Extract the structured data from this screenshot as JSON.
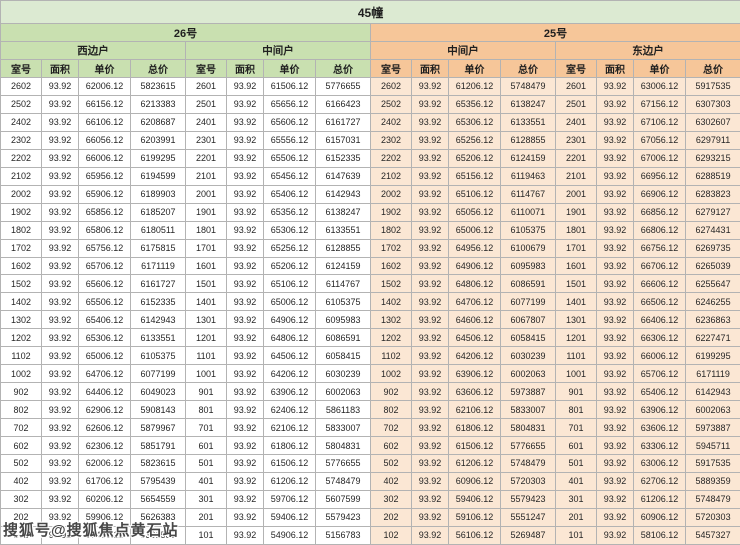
{
  "title": "45幢",
  "watermark": "搜狐号@搜狐焦点黄石站",
  "colors": {
    "title_bar": "#dcead2",
    "section_26_header": "#c9e0b0",
    "section_25_header": "#f6c699",
    "section_25_rows": "#fbe7d4",
    "border": "#b3b3b3"
  },
  "table": {
    "groups": [
      {
        "name": "26号",
        "units": [
          "西边户",
          "中间户"
        ]
      },
      {
        "name": "25号",
        "units": [
          "中间户",
          "东边户"
        ]
      }
    ],
    "column_headers": [
      "室号",
      "面积",
      "单价",
      "总价"
    ],
    "rows": [
      [
        "2602",
        "93.92",
        "62006.12",
        "5823615",
        "2601",
        "93.92",
        "61506.12",
        "5776655",
        "2602",
        "93.92",
        "61206.12",
        "5748479",
        "2601",
        "93.92",
        "63006.12",
        "5917535"
      ],
      [
        "2502",
        "93.92",
        "66156.12",
        "6213383",
        "2501",
        "93.92",
        "65656.12",
        "6166423",
        "2502",
        "93.92",
        "65356.12",
        "6138247",
        "2501",
        "93.92",
        "67156.12",
        "6307303"
      ],
      [
        "2402",
        "93.92",
        "66106.12",
        "6208687",
        "2401",
        "93.92",
        "65606.12",
        "6161727",
        "2402",
        "93.92",
        "65306.12",
        "6133551",
        "2401",
        "93.92",
        "67106.12",
        "6302607"
      ],
      [
        "2302",
        "93.92",
        "66056.12",
        "6203991",
        "2301",
        "93.92",
        "65556.12",
        "6157031",
        "2302",
        "93.92",
        "65256.12",
        "6128855",
        "2301",
        "93.92",
        "67056.12",
        "6297911"
      ],
      [
        "2202",
        "93.92",
        "66006.12",
        "6199295",
        "2201",
        "93.92",
        "65506.12",
        "6152335",
        "2202",
        "93.92",
        "65206.12",
        "6124159",
        "2201",
        "93.92",
        "67006.12",
        "6293215"
      ],
      [
        "2102",
        "93.92",
        "65956.12",
        "6194599",
        "2101",
        "93.92",
        "65456.12",
        "6147639",
        "2102",
        "93.92",
        "65156.12",
        "6119463",
        "2101",
        "93.92",
        "66956.12",
        "6288519"
      ],
      [
        "2002",
        "93.92",
        "65906.12",
        "6189903",
        "2001",
        "93.92",
        "65406.12",
        "6142943",
        "2002",
        "93.92",
        "65106.12",
        "6114767",
        "2001",
        "93.92",
        "66906.12",
        "6283823"
      ],
      [
        "1902",
        "93.92",
        "65856.12",
        "6185207",
        "1901",
        "93.92",
        "65356.12",
        "6138247",
        "1902",
        "93.92",
        "65056.12",
        "6110071",
        "1901",
        "93.92",
        "66856.12",
        "6279127"
      ],
      [
        "1802",
        "93.92",
        "65806.12",
        "6180511",
        "1801",
        "93.92",
        "65306.12",
        "6133551",
        "1802",
        "93.92",
        "65006.12",
        "6105375",
        "1801",
        "93.92",
        "66806.12",
        "6274431"
      ],
      [
        "1702",
        "93.92",
        "65756.12",
        "6175815",
        "1701",
        "93.92",
        "65256.12",
        "6128855",
        "1702",
        "93.92",
        "64956.12",
        "6100679",
        "1701",
        "93.92",
        "66756.12",
        "6269735"
      ],
      [
        "1602",
        "93.92",
        "65706.12",
        "6171119",
        "1601",
        "93.92",
        "65206.12",
        "6124159",
        "1602",
        "93.92",
        "64906.12",
        "6095983",
        "1601",
        "93.92",
        "66706.12",
        "6265039"
      ],
      [
        "1502",
        "93.92",
        "65606.12",
        "6161727",
        "1501",
        "93.92",
        "65106.12",
        "6114767",
        "1502",
        "93.92",
        "64806.12",
        "6086591",
        "1501",
        "93.92",
        "66606.12",
        "6255647"
      ],
      [
        "1402",
        "93.92",
        "65506.12",
        "6152335",
        "1401",
        "93.92",
        "65006.12",
        "6105375",
        "1402",
        "93.92",
        "64706.12",
        "6077199",
        "1401",
        "93.92",
        "66506.12",
        "6246255"
      ],
      [
        "1302",
        "93.92",
        "65406.12",
        "6142943",
        "1301",
        "93.92",
        "64906.12",
        "6095983",
        "1302",
        "93.92",
        "64606.12",
        "6067807",
        "1301",
        "93.92",
        "66406.12",
        "6236863"
      ],
      [
        "1202",
        "93.92",
        "65306.12",
        "6133551",
        "1201",
        "93.92",
        "64806.12",
        "6086591",
        "1202",
        "93.92",
        "64506.12",
        "6058415",
        "1201",
        "93.92",
        "66306.12",
        "6227471"
      ],
      [
        "1102",
        "93.92",
        "65006.12",
        "6105375",
        "1101",
        "93.92",
        "64506.12",
        "6058415",
        "1102",
        "93.92",
        "64206.12",
        "6030239",
        "1101",
        "93.92",
        "66006.12",
        "6199295"
      ],
      [
        "1002",
        "93.92",
        "64706.12",
        "6077199",
        "1001",
        "93.92",
        "64206.12",
        "6030239",
        "1002",
        "93.92",
        "63906.12",
        "6002063",
        "1001",
        "93.92",
        "65706.12",
        "6171119"
      ],
      [
        "902",
        "93.92",
        "64406.12",
        "6049023",
        "901",
        "93.92",
        "63906.12",
        "6002063",
        "902",
        "93.92",
        "63606.12",
        "5973887",
        "901",
        "93.92",
        "65406.12",
        "6142943"
      ],
      [
        "802",
        "93.92",
        "62906.12",
        "5908143",
        "801",
        "93.92",
        "62406.12",
        "5861183",
        "802",
        "93.92",
        "62106.12",
        "5833007",
        "801",
        "93.92",
        "63906.12",
        "6002063"
      ],
      [
        "702",
        "93.92",
        "62606.12",
        "5879967",
        "701",
        "93.92",
        "62106.12",
        "5833007",
        "702",
        "93.92",
        "61806.12",
        "5804831",
        "701",
        "93.92",
        "63606.12",
        "5973887"
      ],
      [
        "602",
        "93.92",
        "62306.12",
        "5851791",
        "601",
        "93.92",
        "61806.12",
        "5804831",
        "602",
        "93.92",
        "61506.12",
        "5776655",
        "601",
        "93.92",
        "63306.12",
        "5945711"
      ],
      [
        "502",
        "93.92",
        "62006.12",
        "5823615",
        "501",
        "93.92",
        "61506.12",
        "5776655",
        "502",
        "93.92",
        "61206.12",
        "5748479",
        "501",
        "93.92",
        "63006.12",
        "5917535"
      ],
      [
        "402",
        "93.92",
        "61706.12",
        "5795439",
        "401",
        "93.92",
        "61206.12",
        "5748479",
        "402",
        "93.92",
        "60906.12",
        "5720303",
        "401",
        "93.92",
        "62706.12",
        "5889359"
      ],
      [
        "302",
        "93.92",
        "60206.12",
        "5654559",
        "301",
        "93.92",
        "59706.12",
        "5607599",
        "302",
        "93.92",
        "59406.12",
        "5579423",
        "301",
        "93.92",
        "61206.12",
        "5748479"
      ],
      [
        "202",
        "93.92",
        "59906.12",
        "5626383",
        "201",
        "93.92",
        "59406.12",
        "5579423",
        "202",
        "93.92",
        "59106.12",
        "5551247",
        "201",
        "93.92",
        "60906.12",
        "5720303"
      ],
      [
        "102",
        "93.92",
        "57406.12",
        "5391583",
        "101",
        "93.92",
        "54906.12",
        "5156783",
        "102",
        "93.92",
        "56106.12",
        "5269487",
        "101",
        "93.92",
        "58106.12",
        "5457327"
      ]
    ]
  }
}
